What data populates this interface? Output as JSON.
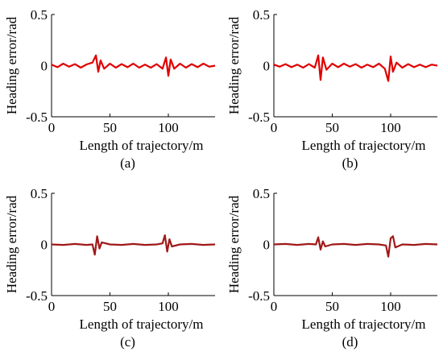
{
  "chart_data": [
    {
      "type": "line",
      "caption": "(a)",
      "xlabel": "Length of trajectory/m",
      "ylabel": "Heading error/rad",
      "xlim": [
        0,
        140
      ],
      "ylim": [
        -0.5,
        0.5
      ],
      "xticks": [
        "0",
        "50",
        "100"
      ],
      "yticks": [
        "0.5",
        "0",
        "-0.5"
      ],
      "series": [
        {
          "color": "#e00000",
          "points": [
            [
              0,
              0.01
            ],
            [
              5,
              -0.015
            ],
            [
              10,
              0.02
            ],
            [
              15,
              -0.01
            ],
            [
              20,
              0.015
            ],
            [
              25,
              -0.02
            ],
            [
              30,
              0.012
            ],
            [
              35,
              0.03
            ],
            [
              38,
              0.1
            ],
            [
              40,
              -0.06
            ],
            [
              42,
              0.05
            ],
            [
              45,
              -0.03
            ],
            [
              50,
              0.02
            ],
            [
              55,
              -0.02
            ],
            [
              60,
              0.015
            ],
            [
              65,
              -0.015
            ],
            [
              70,
              0.02
            ],
            [
              75,
              -0.02
            ],
            [
              80,
              0.01
            ],
            [
              85,
              -0.02
            ],
            [
              90,
              0.015
            ],
            [
              95,
              -0.03
            ],
            [
              98,
              0.08
            ],
            [
              100,
              -0.1
            ],
            [
              102,
              0.06
            ],
            [
              105,
              -0.03
            ],
            [
              110,
              0.02
            ],
            [
              115,
              -0.02
            ],
            [
              120,
              0.015
            ],
            [
              125,
              -0.015
            ],
            [
              130,
              0.02
            ],
            [
              135,
              -0.01
            ],
            [
              140,
              0.0
            ]
          ]
        }
      ]
    },
    {
      "type": "line",
      "caption": "(b)",
      "xlabel": "Length of trajectory/m",
      "ylabel": "Heading error/rad",
      "xlim": [
        0,
        140
      ],
      "ylim": [
        -0.5,
        0.5
      ],
      "xticks": [
        "0",
        "50",
        "100"
      ],
      "yticks": [
        "0.5",
        "0",
        "-0.5"
      ],
      "series": [
        {
          "color": "#e00000",
          "points": [
            [
              0,
              0.01
            ],
            [
              5,
              -0.01
            ],
            [
              10,
              0.015
            ],
            [
              15,
              -0.015
            ],
            [
              20,
              0.01
            ],
            [
              25,
              -0.02
            ],
            [
              30,
              0.015
            ],
            [
              35,
              -0.02
            ],
            [
              38,
              0.1
            ],
            [
              40,
              -0.14
            ],
            [
              42,
              0.08
            ],
            [
              45,
              -0.04
            ],
            [
              50,
              0.02
            ],
            [
              55,
              -0.015
            ],
            [
              60,
              0.02
            ],
            [
              65,
              -0.01
            ],
            [
              70,
              0.015
            ],
            [
              75,
              -0.02
            ],
            [
              80,
              0.01
            ],
            [
              85,
              -0.015
            ],
            [
              90,
              0.02
            ],
            [
              95,
              -0.03
            ],
            [
              98,
              -0.15
            ],
            [
              100,
              0.09
            ],
            [
              102,
              -0.06
            ],
            [
              105,
              0.03
            ],
            [
              110,
              -0.02
            ],
            [
              115,
              0.015
            ],
            [
              120,
              -0.015
            ],
            [
              125,
              0.01
            ],
            [
              130,
              -0.015
            ],
            [
              135,
              0.01
            ],
            [
              140,
              0.0
            ]
          ]
        }
      ]
    },
    {
      "type": "line",
      "caption": "(c)",
      "xlabel": "Length of trajectory/m",
      "ylabel": "Heading error/rad",
      "xlim": [
        0,
        140
      ],
      "ylim": [
        -0.5,
        0.5
      ],
      "xticks": [
        "0",
        "50",
        "100"
      ],
      "yticks": [
        "0.5",
        "0",
        "-0.5"
      ],
      "series": [
        {
          "color": "#a01818",
          "points": [
            [
              0,
              0.0
            ],
            [
              10,
              -0.005
            ],
            [
              20,
              0.005
            ],
            [
              30,
              -0.005
            ],
            [
              35,
              0.0
            ],
            [
              37,
              -0.1
            ],
            [
              39,
              0.08
            ],
            [
              41,
              -0.04
            ],
            [
              43,
              0.02
            ],
            [
              50,
              0.0
            ],
            [
              60,
              -0.005
            ],
            [
              70,
              0.005
            ],
            [
              80,
              -0.005
            ],
            [
              90,
              0.0
            ],
            [
              95,
              0.01
            ],
            [
              97,
              0.09
            ],
            [
              99,
              -0.07
            ],
            [
              101,
              0.05
            ],
            [
              103,
              -0.02
            ],
            [
              110,
              0.0
            ],
            [
              120,
              0.005
            ],
            [
              130,
              -0.005
            ],
            [
              140,
              0.0
            ]
          ]
        }
      ]
    },
    {
      "type": "line",
      "caption": "(d)",
      "xlabel": "Length of trajectory/m",
      "ylabel": "Heading error/rad",
      "xlim": [
        0,
        140
      ],
      "ylim": [
        -0.5,
        0.5
      ],
      "xticks": [
        "0",
        "50",
        "100"
      ],
      "yticks": [
        "0.5",
        "0",
        "-0.5"
      ],
      "series": [
        {
          "color": "#a01818",
          "points": [
            [
              0,
              0.0
            ],
            [
              10,
              0.005
            ],
            [
              20,
              -0.005
            ],
            [
              30,
              0.005
            ],
            [
              36,
              0.0
            ],
            [
              38,
              0.07
            ],
            [
              40,
              -0.05
            ],
            [
              42,
              0.03
            ],
            [
              44,
              -0.02
            ],
            [
              50,
              0.0
            ],
            [
              60,
              0.005
            ],
            [
              70,
              -0.005
            ],
            [
              80,
              0.005
            ],
            [
              90,
              0.0
            ],
            [
              96,
              -0.01
            ],
            [
              98,
              -0.12
            ],
            [
              100,
              0.06
            ],
            [
              102,
              0.08
            ],
            [
              104,
              -0.03
            ],
            [
              110,
              0.0
            ],
            [
              120,
              -0.005
            ],
            [
              130,
              0.005
            ],
            [
              140,
              0.0
            ]
          ]
        }
      ]
    }
  ]
}
